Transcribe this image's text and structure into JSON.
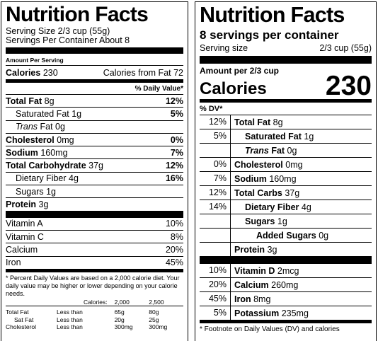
{
  "left": {
    "title": "Nutrition Facts",
    "serving_size": "Serving Size 2/3 cup (55g)",
    "servings": "Servings Per Container About 8",
    "amount_per_serving": "Amount Per Serving",
    "calories": {
      "label": "Calories",
      "value": "230",
      "from_fat": "Calories from Fat 72"
    },
    "dv_header": "% Daily Value*",
    "nutrients": [
      {
        "name": "Total Fat",
        "amount": "8g",
        "dv": "12%"
      },
      {
        "name": "Saturated Fat 1g",
        "dv": "5%"
      },
      {
        "italic": "Trans",
        "name": "Fat 0g"
      },
      {
        "name": "Cholesterol",
        "amount": "0mg",
        "dv": "0%"
      },
      {
        "name": "Sodium",
        "amount": "160mg",
        "dv": "7%"
      },
      {
        "name": "Total Carbohydrate",
        "amount": "37g",
        "dv": "12%"
      },
      {
        "name": "Dietary Fiber 4g",
        "dv": "16%"
      },
      {
        "name": "Sugars 1g"
      },
      {
        "name": "Protein",
        "amount": "3g"
      }
    ],
    "vitamins": [
      {
        "name": "Vitamin A",
        "dv": "10%"
      },
      {
        "name": "Vitamin C",
        "dv": "8%"
      },
      {
        "name": "Calcium",
        "dv": "20%"
      },
      {
        "name": "Iron",
        "dv": "45%"
      }
    ],
    "footnote": "* Percent Daily Values are based on a 2,000 calorie diet. Your daily value may be higher or lower depending on your calorie needs.",
    "dv_table": {
      "header": [
        "Calories:",
        "2,000",
        "2,500"
      ],
      "rows": [
        [
          "Total Fat",
          "Less than",
          "65g",
          "80g"
        ],
        [
          "Sat Fat",
          "Less than",
          "20g",
          "25g"
        ],
        [
          "Cholesterol",
          "Less than",
          "300mg",
          "300mg"
        ]
      ]
    }
  },
  "right": {
    "title": "Nutrition Facts",
    "servings": "8 servings per container",
    "serving_size": {
      "label": "Serving size",
      "value": "2/3 cup (55g)"
    },
    "amount_per": "Amount per 2/3 cup",
    "calories": {
      "label": "Calories",
      "value": "230"
    },
    "dv_header": "% DV*",
    "nutrients": [
      {
        "dv": "12%",
        "name": "Total Fat",
        "amount": "8g"
      },
      {
        "dv": "5%",
        "name": "Saturated Fat",
        "amount": "1g"
      },
      {
        "italic": "Trans",
        "name": "Fat",
        "amount": "0g"
      },
      {
        "dv": "0%",
        "name": "Cholesterol",
        "amount": "0mg"
      },
      {
        "dv": "7%",
        "name": "Sodium",
        "amount": "160mg"
      },
      {
        "dv": "12%",
        "name": "Total Carbs",
        "amount": "37g"
      },
      {
        "dv": "14%",
        "name": "Dietary Fiber",
        "amount": "4g"
      },
      {
        "name": "Sugars",
        "amount": "1g"
      },
      {
        "name": "Added Sugars",
        "amount": "0g"
      },
      {
        "name": "Protein",
        "amount": "3g"
      }
    ],
    "minerals": [
      {
        "dv": "10%",
        "name": "Vitamin D",
        "amount": "2mcg"
      },
      {
        "dv": "20%",
        "name": "Calcium",
        "amount": "260mg"
      },
      {
        "dv": "45%",
        "name": "Iron",
        "amount": "8mg"
      },
      {
        "dv": "5%",
        "name": "Potassium",
        "amount": "235mg"
      }
    ],
    "footnote": "* Footnote on Daily Values (DV) and calories"
  }
}
